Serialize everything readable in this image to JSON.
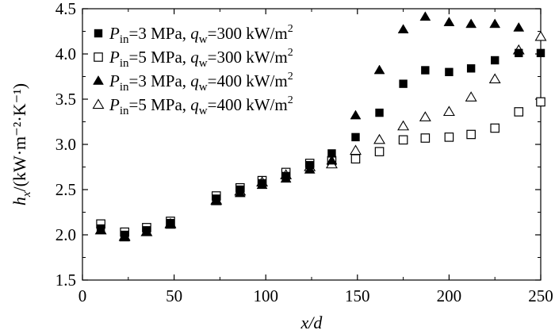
{
  "chart_data": {
    "type": "scatter",
    "xlabel": "x/d",
    "ylabel": "h_x/(kW·m⁻²·K⁻¹)",
    "xlim": [
      0,
      250
    ],
    "ylim": [
      1.5,
      4.5
    ],
    "xticks": [
      0,
      50,
      100,
      150,
      200,
      250
    ],
    "yticks": [
      1.5,
      2.0,
      2.5,
      3.0,
      3.5,
      4.0,
      4.5
    ],
    "xtick_labels": [
      "0",
      "50",
      "100",
      "150",
      "200",
      "250"
    ],
    "ytick_labels": [
      "1.5",
      "2.0",
      "2.5",
      "3.0",
      "3.5",
      "4.0",
      "4.5"
    ],
    "legend_position": "top-left",
    "series": [
      {
        "name": "P_in=3 MPa, q_w=300 kW/m2",
        "marker": "filled-square",
        "legend": {
          "p_sub": "in",
          "p_val": "=3 MPa, ",
          "q_sub": "w",
          "q_val": "=300 kW/m",
          "sup": "2"
        },
        "points": [
          [
            10,
            2.07
          ],
          [
            23,
            2.0
          ],
          [
            35,
            2.05
          ],
          [
            48,
            2.13
          ],
          [
            73,
            2.4
          ],
          [
            86,
            2.5
          ],
          [
            98,
            2.57
          ],
          [
            111,
            2.65
          ],
          [
            124,
            2.77
          ],
          [
            136,
            2.9
          ],
          [
            149,
            3.08
          ],
          [
            162,
            3.35
          ],
          [
            175,
            3.67
          ],
          [
            187,
            3.82
          ],
          [
            200,
            3.8
          ],
          [
            212,
            3.84
          ],
          [
            225,
            3.93
          ],
          [
            238,
            4.01
          ],
          [
            250,
            4.01
          ]
        ]
      },
      {
        "name": "P_in=5 MPa, q_w=300 kW/m2",
        "marker": "open-square",
        "legend": {
          "p_sub": "in",
          "p_val": "=5 MPa, ",
          "q_sub": "w",
          "q_val": "=300 kW/m",
          "sup": "2"
        },
        "points": [
          [
            10,
            2.12
          ],
          [
            23,
            2.03
          ],
          [
            35,
            2.08
          ],
          [
            48,
            2.15
          ],
          [
            73,
            2.43
          ],
          [
            86,
            2.52
          ],
          [
            98,
            2.6
          ],
          [
            111,
            2.69
          ],
          [
            124,
            2.79
          ],
          [
            136,
            2.82
          ],
          [
            149,
            2.84
          ],
          [
            162,
            2.92
          ],
          [
            175,
            3.05
          ],
          [
            187,
            3.07
          ],
          [
            200,
            3.08
          ],
          [
            212,
            3.11
          ],
          [
            225,
            3.18
          ],
          [
            238,
            3.36
          ],
          [
            250,
            3.47
          ]
        ]
      },
      {
        "name": "P_in=3 MPa, q_w=400 kW/m2",
        "marker": "filled-triangle",
        "legend": {
          "p_sub": "in",
          "p_val": "=3 MPa, ",
          "q_sub": "w",
          "q_val": "=400 kW/m",
          "sup": "2"
        },
        "points": [
          [
            10,
            2.05
          ],
          [
            23,
            1.97
          ],
          [
            35,
            2.03
          ],
          [
            48,
            2.11
          ],
          [
            73,
            2.37
          ],
          [
            86,
            2.46
          ],
          [
            98,
            2.55
          ],
          [
            111,
            2.62
          ],
          [
            124,
            2.72
          ],
          [
            136,
            2.82
          ],
          [
            149,
            3.32
          ],
          [
            162,
            3.82
          ],
          [
            175,
            4.27
          ],
          [
            187,
            4.41
          ],
          [
            200,
            4.35
          ],
          [
            212,
            4.33
          ],
          [
            225,
            4.33
          ],
          [
            238,
            4.29
          ]
        ]
      },
      {
        "name": "P_in=5 MPa, q_w=400 kW/m2",
        "marker": "open-triangle",
        "legend": {
          "p_sub": "in",
          "p_val": "=5 MPa, ",
          "q_sub": "w",
          "q_val": "=400 kW/m",
          "sup": "2"
        },
        "points": [
          [
            10,
            2.05
          ],
          [
            23,
            1.98
          ],
          [
            35,
            2.03
          ],
          [
            48,
            2.12
          ],
          [
            73,
            2.38
          ],
          [
            86,
            2.48
          ],
          [
            98,
            2.58
          ],
          [
            111,
            2.66
          ],
          [
            124,
            2.75
          ],
          [
            136,
            2.78
          ],
          [
            149,
            2.93
          ],
          [
            162,
            3.05
          ],
          [
            175,
            3.2
          ],
          [
            187,
            3.3
          ],
          [
            200,
            3.36
          ],
          [
            212,
            3.52
          ],
          [
            225,
            3.72
          ],
          [
            238,
            4.04
          ],
          [
            250,
            4.19
          ]
        ]
      }
    ]
  }
}
